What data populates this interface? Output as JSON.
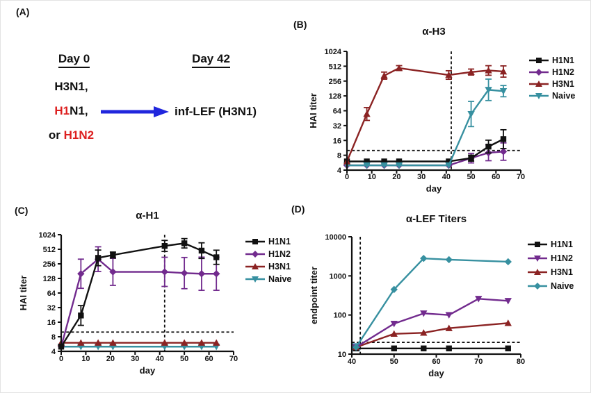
{
  "panels": {
    "a": {
      "label": "(A)",
      "day0_heading": "Day 0",
      "day42_heading": "Day 42",
      "treatments": [
        [
          {
            "text": "H3N1,",
            "color": "#111111"
          }
        ],
        [
          {
            "text": "H1",
            "color": "#dd1f1f"
          },
          {
            "text": "N1,",
            "color": "#111111"
          }
        ],
        [
          {
            "text": "or ",
            "color": "#111111"
          },
          {
            "text": "H1N2",
            "color": "#dd1f1f"
          }
        ]
      ],
      "arrow_target": "inf-LEF (H3N1)",
      "arrow_color": "#2026dd",
      "highlight_red": "#dd1f1f"
    },
    "b": {
      "label": "(B)",
      "title": "α-H3"
    },
    "c": {
      "label": "(C)",
      "title": "α-H1"
    },
    "d": {
      "label": "(D)",
      "title": "α-LEF Titers"
    }
  },
  "chart_data": [
    {
      "id": "B",
      "type": "line",
      "title": "α-H3",
      "xlabel": "day",
      "ylabel": "HAI titer",
      "x_range": [
        0,
        70
      ],
      "x_ticks": [
        0,
        10,
        20,
        30,
        40,
        50,
        60,
        70
      ],
      "y_scale": "log",
      "y_range": [
        4,
        1024
      ],
      "y_ticks": [
        4,
        8,
        16,
        32,
        64,
        128,
        256,
        512,
        1024
      ],
      "ref_vline_x": 42,
      "ref_hline_y": 10,
      "grid": false,
      "legend_position": "right",
      "draw_order": [
        1,
        0,
        3,
        2
      ],
      "series": [
        {
          "name": "H1N1",
          "color": "#111111",
          "marker": "square",
          "x": [
            0,
            8,
            15,
            21,
            41,
            50,
            57,
            63
          ],
          "y": [
            6,
            6,
            6,
            6,
            6,
            7,
            12,
            17
          ],
          "errf": [
            1,
            1,
            1,
            1,
            1,
            1.15,
            1.35,
            1.55
          ]
        },
        {
          "name": "H1N2",
          "color": "#722b8e",
          "marker": "diamond",
          "x": [
            0,
            8,
            15,
            21,
            41,
            50,
            57,
            63
          ],
          "y": [
            5,
            5,
            5,
            5,
            5,
            7,
            9,
            9.5
          ],
          "errf": [
            1,
            1,
            1,
            1,
            1,
            1.25,
            1.45,
            1.5
          ]
        },
        {
          "name": "H3N1",
          "color": "#8b2323",
          "marker": "triangle-up",
          "x": [
            0,
            8,
            15,
            21,
            41,
            50,
            57,
            63
          ],
          "y": [
            6,
            55,
            330,
            470,
            340,
            390,
            420,
            400
          ],
          "errf": [
            1,
            1.35,
            1.18,
            1.12,
            1.22,
            1.15,
            1.25,
            1.3
          ]
        },
        {
          "name": "Naive",
          "color": "#3790a0",
          "marker": "triangle-down",
          "x": [
            0,
            8,
            15,
            21,
            41,
            50,
            57,
            63
          ],
          "y": [
            5,
            5,
            5,
            5,
            5,
            55,
            170,
            160
          ],
          "errf": [
            1,
            1,
            1,
            1,
            1,
            1.8,
            1.65,
            1.3
          ]
        }
      ]
    },
    {
      "id": "C",
      "type": "line",
      "title": "α-H1",
      "xlabel": "day",
      "ylabel": "HAI titer",
      "x_range": [
        0,
        70
      ],
      "x_ticks": [
        0,
        10,
        20,
        30,
        40,
        50,
        60,
        70
      ],
      "y_scale": "log",
      "y_range": [
        4,
        1024
      ],
      "y_ticks": [
        4,
        8,
        16,
        32,
        64,
        128,
        256,
        512,
        1024
      ],
      "ref_vline_x": 42,
      "ref_hline_y": 10,
      "grid": false,
      "legend_position": "right",
      "draw_order": [
        3,
        2,
        1,
        0
      ],
      "series": [
        {
          "name": "H1N1",
          "color": "#111111",
          "marker": "square",
          "x": [
            0,
            8,
            15,
            21,
            42,
            50,
            57,
            63
          ],
          "y": [
            5,
            22,
            340,
            390,
            600,
            680,
            480,
            350
          ],
          "errf": [
            1,
            1.6,
            1.45,
            1.15,
            1.3,
            1.25,
            1.45,
            1.4
          ]
        },
        {
          "name": "H1N2",
          "color": "#722b8e",
          "marker": "diamond",
          "x": [
            0,
            8,
            15,
            21,
            42,
            50,
            57,
            63
          ],
          "y": [
            5,
            160,
            320,
            175,
            175,
            165,
            160,
            160
          ],
          "errf": [
            1,
            2.0,
            1.8,
            1.9,
            2.0,
            2.1,
            2.2,
            2.2
          ]
        },
        {
          "name": "H3N1",
          "color": "#8b2323",
          "marker": "triangle-up",
          "x": [
            0,
            8,
            15,
            21,
            42,
            50,
            57,
            63
          ],
          "y": [
            6,
            6,
            6,
            6,
            6,
            6,
            6,
            6
          ]
        },
        {
          "name": "Naive",
          "color": "#3790a0",
          "marker": "triangle-down",
          "x": [
            0,
            8,
            15,
            21,
            42,
            50,
            57,
            63
          ],
          "y": [
            5,
            5,
            5,
            5,
            5,
            5,
            5,
            5
          ]
        }
      ]
    },
    {
      "id": "D",
      "type": "line",
      "title": "α-LEF Titers",
      "xlabel": "day",
      "ylabel": "endpoint titer",
      "x_range": [
        40,
        80
      ],
      "x_ticks": [
        40,
        50,
        60,
        70,
        80
      ],
      "y_scale": "log",
      "y_range": [
        10,
        10000
      ],
      "y_ticks": [
        10,
        100,
        1000,
        10000
      ],
      "ref_vline_x": 42,
      "ref_hline_y": 20,
      "grid": false,
      "legend_position": "right",
      "draw_order": [
        0,
        2,
        1,
        3
      ],
      "annotations": [
        {
          "type": "square",
          "x": 41,
          "y": 15,
          "size": 6,
          "color": "#4f93b8",
          "opacity": 0.85
        }
      ],
      "series": [
        {
          "name": "H1N1",
          "color": "#111111",
          "marker": "square",
          "x": [
            41,
            50,
            57,
            63,
            77
          ],
          "y": [
            14,
            14,
            14,
            14,
            14
          ]
        },
        {
          "name": "H1N2",
          "color": "#722b8e",
          "marker": "triangle-down",
          "x": [
            41,
            50,
            57,
            63,
            70,
            77
          ],
          "y": [
            15,
            60,
            110,
            100,
            260,
            230
          ]
        },
        {
          "name": "H3N1",
          "color": "#8b2323",
          "marker": "triangle-up",
          "x": [
            41,
            50,
            57,
            63,
            77
          ],
          "y": [
            15,
            33,
            35,
            46,
            62
          ]
        },
        {
          "name": "Naive",
          "color": "#3790a0",
          "marker": "diamond",
          "x": [
            41,
            50,
            57,
            63,
            77
          ],
          "y": [
            15,
            450,
            2800,
            2600,
            2300
          ]
        }
      ]
    }
  ]
}
